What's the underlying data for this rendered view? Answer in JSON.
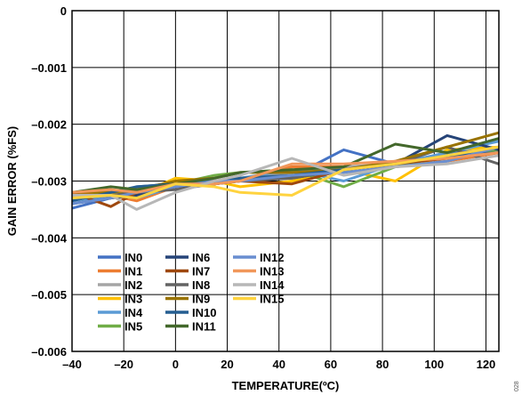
{
  "chart_data": {
    "type": "line",
    "title": "",
    "xlabel": "TEMPERATURE(ºC)",
    "ylabel": "GAIN ERROR (%FS)",
    "xlim": [
      -40,
      125
    ],
    "ylim": [
      -0.006,
      0
    ],
    "x_ticks": [
      "–40",
      "–20",
      "0",
      "20",
      "40",
      "60",
      "80",
      "100",
      "120"
    ],
    "x_tick_values": [
      -40,
      -20,
      0,
      20,
      40,
      60,
      80,
      100,
      120
    ],
    "y_ticks": [
      "0",
      "–0.001",
      "–0.002",
      "–0.003",
      "–0.004",
      "–0.005",
      "–0.006"
    ],
    "y_tick_values": [
      0,
      -0.001,
      -0.002,
      -0.003,
      -0.004,
      -0.005,
      -0.006
    ],
    "grid": true,
    "legend_position": "lower-left",
    "figure_id": "028",
    "x": [
      -40,
      -25,
      -15,
      0,
      15,
      25,
      45,
      65,
      85,
      105,
      125
    ],
    "series": [
      {
        "name": "IN0",
        "color": "#4472c4",
        "values": [
          -0.00348,
          -0.0033,
          -0.0031,
          -0.00305,
          -0.003,
          -0.00295,
          -0.00292,
          -0.00245,
          -0.0027,
          -0.0025,
          -0.00245
        ]
      },
      {
        "name": "IN1",
        "color": "#ed7d31",
        "values": [
          -0.0032,
          -0.00325,
          -0.00335,
          -0.0031,
          -0.003,
          -0.003,
          -0.00275,
          -0.00275,
          -0.00275,
          -0.00265,
          -0.0025
        ]
      },
      {
        "name": "IN2",
        "color": "#a5a5a5",
        "values": [
          -0.0032,
          -0.00315,
          -0.00325,
          -0.0031,
          -0.003,
          -0.00295,
          -0.00285,
          -0.00275,
          -0.0027,
          -0.0026,
          -0.0025
        ]
      },
      {
        "name": "IN3",
        "color": "#ffc000",
        "values": [
          -0.0033,
          -0.0032,
          -0.00325,
          -0.00295,
          -0.003,
          -0.0031,
          -0.003,
          -0.0028,
          -0.003,
          -0.00245,
          -0.0024
        ]
      },
      {
        "name": "IN4",
        "color": "#5b9bd5",
        "values": [
          -0.0034,
          -0.00325,
          -0.0033,
          -0.0031,
          -0.00305,
          -0.00295,
          -0.0028,
          -0.003,
          -0.0027,
          -0.0025,
          -0.0023
        ]
      },
      {
        "name": "IN5",
        "color": "#70ad47",
        "values": [
          -0.0033,
          -0.0032,
          -0.00315,
          -0.00305,
          -0.0029,
          -0.00285,
          -0.0028,
          -0.0031,
          -0.00275,
          -0.00255,
          -0.00245
        ]
      },
      {
        "name": "IN6",
        "color": "#264478",
        "values": [
          -0.0034,
          -0.0033,
          -0.00325,
          -0.0031,
          -0.00305,
          -0.003,
          -0.00295,
          -0.0028,
          -0.0027,
          -0.0022,
          -0.00245
        ]
      },
      {
        "name": "IN7",
        "color": "#9e480e",
        "values": [
          -0.0032,
          -0.00345,
          -0.0032,
          -0.00305,
          -0.00305,
          -0.003,
          -0.00305,
          -0.0028,
          -0.0027,
          -0.0026,
          -0.0025
        ]
      },
      {
        "name": "IN8",
        "color": "#636363",
        "values": [
          -0.0033,
          -0.00325,
          -0.0032,
          -0.00315,
          -0.00305,
          -0.003,
          -0.00295,
          -0.0028,
          -0.0027,
          -0.0024,
          -0.0027
        ]
      },
      {
        "name": "IN9",
        "color": "#997300",
        "values": [
          -0.0032,
          -0.0032,
          -0.00315,
          -0.003,
          -0.00295,
          -0.00285,
          -0.00285,
          -0.0028,
          -0.00265,
          -0.0024,
          -0.00215
        ]
      },
      {
        "name": "IN10",
        "color": "#255e91",
        "values": [
          -0.00335,
          -0.0032,
          -0.0031,
          -0.00305,
          -0.003,
          -0.00295,
          -0.0029,
          -0.0028,
          -0.0027,
          -0.00255,
          -0.0025
        ]
      },
      {
        "name": "IN11",
        "color": "#43682b",
        "values": [
          -0.0032,
          -0.0031,
          -0.00315,
          -0.00305,
          -0.00295,
          -0.00285,
          -0.0028,
          -0.00275,
          -0.00235,
          -0.0025,
          -0.00225
        ]
      },
      {
        "name": "IN12",
        "color": "#698ed0",
        "values": [
          -0.0034,
          -0.0033,
          -0.0032,
          -0.0031,
          -0.003,
          -0.003,
          -0.0029,
          -0.00285,
          -0.00275,
          -0.00265,
          -0.0024
        ]
      },
      {
        "name": "IN13",
        "color": "#f1975a",
        "values": [
          -0.0032,
          -0.00315,
          -0.0032,
          -0.00305,
          -0.00305,
          -0.003,
          -0.0027,
          -0.0027,
          -0.00265,
          -0.0026,
          -0.0025
        ]
      },
      {
        "name": "IN14",
        "color": "#b7b7b7",
        "values": [
          -0.00325,
          -0.00325,
          -0.0035,
          -0.0032,
          -0.003,
          -0.0029,
          -0.0026,
          -0.0029,
          -0.00275,
          -0.0027,
          -0.00255
        ]
      },
      {
        "name": "IN15",
        "color": "#ffd33f",
        "values": [
          -0.0033,
          -0.00325,
          -0.0033,
          -0.00305,
          -0.0031,
          -0.0032,
          -0.00325,
          -0.0028,
          -0.0027,
          -0.00255,
          -0.0024
        ]
      }
    ]
  }
}
